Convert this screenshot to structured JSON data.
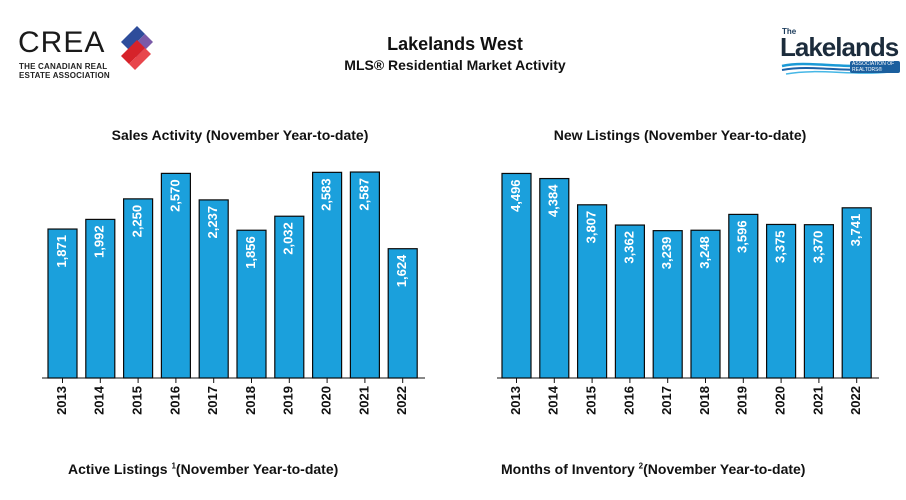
{
  "logo_left": {
    "name": "CREA",
    "tagline_line1": "THE CANADIAN REAL",
    "tagline_line2": "ESTATE ASSOCIATION"
  },
  "header": {
    "title": "Lakelands West",
    "subtitle": "MLS® Residential Market Activity"
  },
  "logo_right": {
    "small": "The",
    "name": "Lakelands",
    "tag": "ASSOCIATION OF REALTORS®"
  },
  "colors": {
    "bar": "#1ba0dc",
    "bar_edge": "#0a0a0a",
    "label": "#ffffff"
  },
  "chart_data": [
    {
      "type": "bar",
      "title": "Sales Activity (November Year-to-date)",
      "categories": [
        "2013",
        "2014",
        "2015",
        "2016",
        "2017",
        "2018",
        "2019",
        "2020",
        "2021",
        "2022"
      ],
      "values": [
        1871,
        1992,
        2250,
        2570,
        2237,
        1856,
        2032,
        2583,
        2587,
        1624
      ],
      "labels": [
        "1,871",
        "1,992",
        "2,250",
        "2,570",
        "2,237",
        "1,856",
        "2,032",
        "2,583",
        "2,587",
        "1,624"
      ],
      "ylim": [
        0,
        2600
      ],
      "xlabel": "",
      "ylabel": ""
    },
    {
      "type": "bar",
      "title": "New Listings (November Year-to-date)",
      "categories": [
        "2013",
        "2014",
        "2015",
        "2016",
        "2017",
        "2018",
        "2019",
        "2020",
        "2021",
        "2022"
      ],
      "values": [
        4496,
        4384,
        3807,
        3362,
        3239,
        3248,
        3596,
        3375,
        3370,
        3741
      ],
      "labels": [
        "4,496",
        "4,384",
        "3,807",
        "3,362",
        "3,239",
        "3,248",
        "3,596",
        "3,375",
        "3,370",
        "3,741"
      ],
      "ylim": [
        0,
        4550
      ],
      "xlabel": "",
      "ylabel": ""
    }
  ],
  "bottom_titles": {
    "left": {
      "text_a": "Active Listings ",
      "sup": "1",
      "text_b": "(November Year-to-date)"
    },
    "right": {
      "text_a": "Months of Inventory ",
      "sup": "2",
      "text_b": "(November Year-to-date)"
    }
  }
}
